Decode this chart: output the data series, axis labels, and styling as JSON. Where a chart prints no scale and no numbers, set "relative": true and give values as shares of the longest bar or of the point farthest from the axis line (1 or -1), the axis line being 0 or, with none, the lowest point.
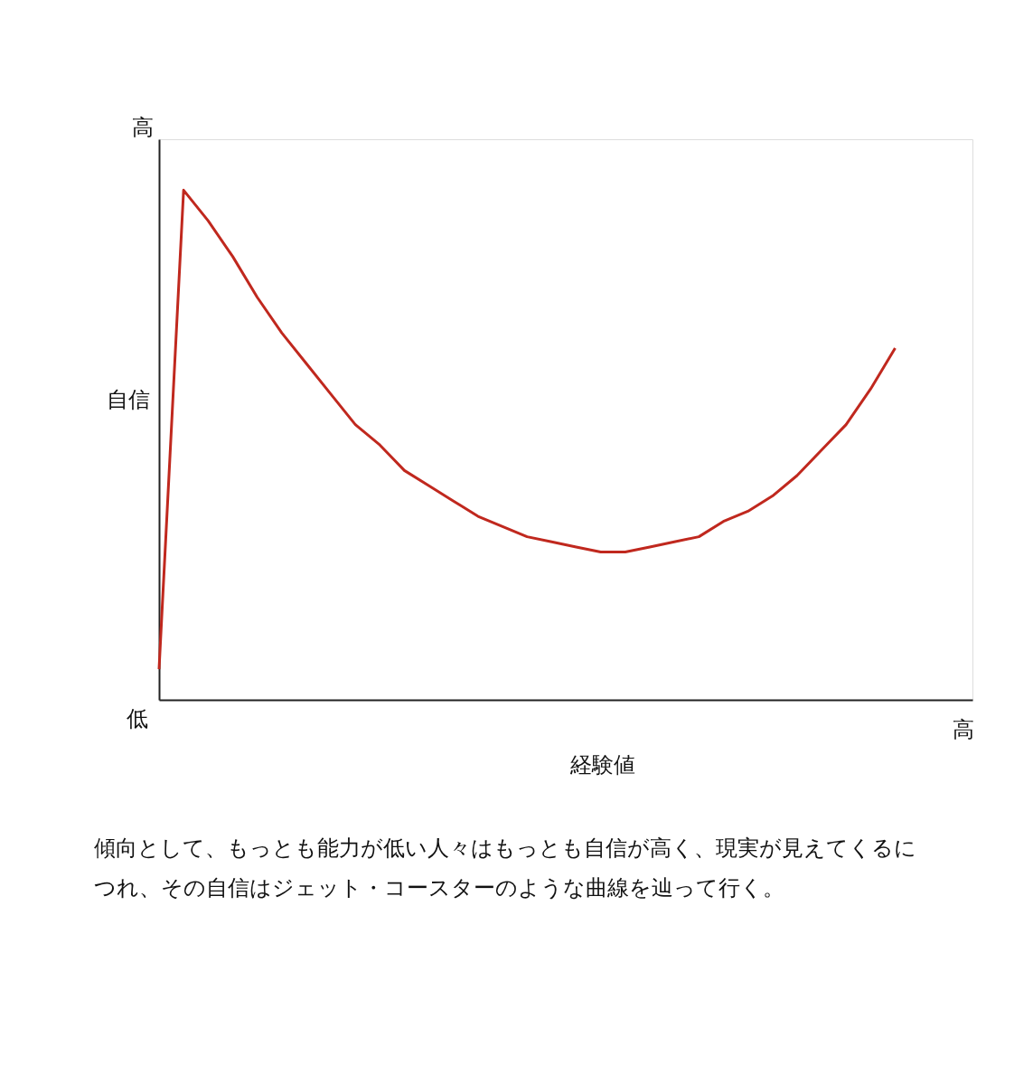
{
  "chart_data": {
    "type": "line",
    "relative": true,
    "xlabel": "経験値",
    "ylabel": "自信",
    "categories": [
      null,
      null,
      null,
      null,
      null,
      null,
      null,
      null,
      null,
      null,
      null,
      null,
      null,
      null,
      null,
      null,
      null,
      null,
      null,
      null,
      null,
      null,
      null,
      null,
      null,
      null,
      null,
      null,
      null,
      null,
      null
    ],
    "series": [
      {
        "color": "#c0281e",
        "values": [
          0.06,
          1.0,
          0.94,
          0.87,
          0.79,
          0.72,
          0.66,
          0.6,
          0.54,
          0.5,
          0.45,
          0.42,
          0.39,
          0.36,
          0.34,
          0.32,
          0.31,
          0.3,
          0.29,
          0.29,
          0.3,
          0.31,
          0.32,
          0.35,
          0.37,
          0.4,
          0.44,
          0.49,
          0.54,
          0.61,
          0.69
        ]
      }
    ],
    "annotations": [
      "高",
      "低",
      "高",
      "傾向として、もっとも能力が低い人々はもっとも自信が高く、現実が見えてくるにつれ、その自信はジェット・コースターのような曲線を辿って行く。"
    ]
  }
}
